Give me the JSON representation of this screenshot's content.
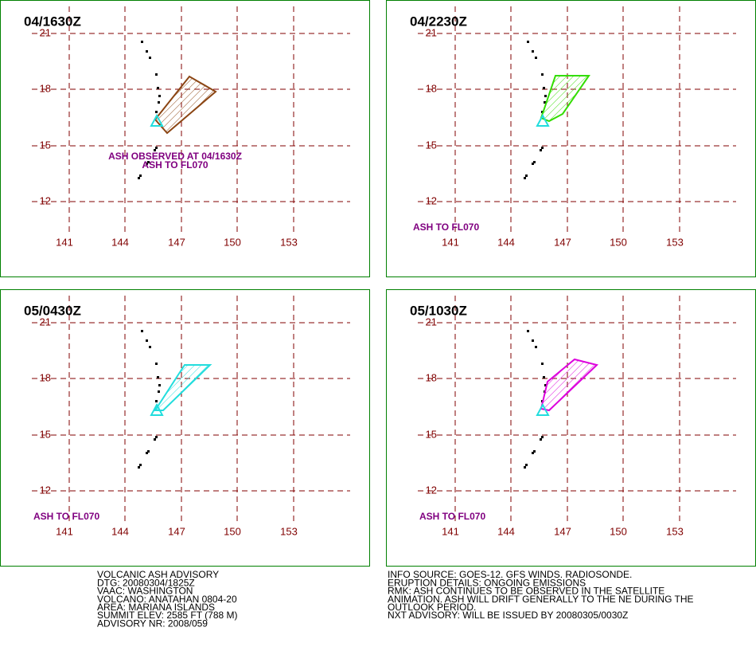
{
  "panels": [
    {
      "title": "04/1630Z",
      "color": "#8b4513",
      "notes": [
        "ASH OBSERVED AT 04/1630Z",
        "ASH TO FL070"
      ]
    },
    {
      "title": "04/2230Z",
      "color": "#33dd00",
      "notes": [
        "ASH TO FL070"
      ]
    },
    {
      "title": "05/0430Z",
      "color": "#22dddd",
      "notes": [
        "ASH TO FL070"
      ]
    },
    {
      "title": "05/1030Z",
      "color": "#dd00dd",
      "notes": [
        "ASH TO FL070"
      ]
    }
  ],
  "lat_labels": [
    "21",
    "18",
    "15",
    "12"
  ],
  "lon_labels": [
    "141",
    "144",
    "147",
    "150",
    "153"
  ],
  "advisory": {
    "left": [
      "VOLCANIC ASH ADVISORY",
      "DTG: 20080304/1825Z",
      "VAAC: WASHINGTON",
      "VOLCANO: ANATAHAN 0804-20",
      "AREA: MARIANA ISLANDS",
      "SUMMIT ELEV: 2585 FT (788 M)",
      "ADVISORY NR: 2008/059"
    ],
    "right": [
      "INFO SOURCE: GOES-12. GFS WINDS. RADIOSONDE.",
      "ERUPTION DETAILS: ONGOING EMISSIONS",
      "RMK: ASH CONTINUES TO BE OBSERVED IN THE SATELLITE",
      "ANIMATION. ASH WILL DRIFT GENERALLY TO THE NE DURING THE",
      "OUTLOOK PERIOD.",
      "NXT ADVISORY: WILL BE ISSUED BY 20080305/0030Z"
    ]
  }
}
